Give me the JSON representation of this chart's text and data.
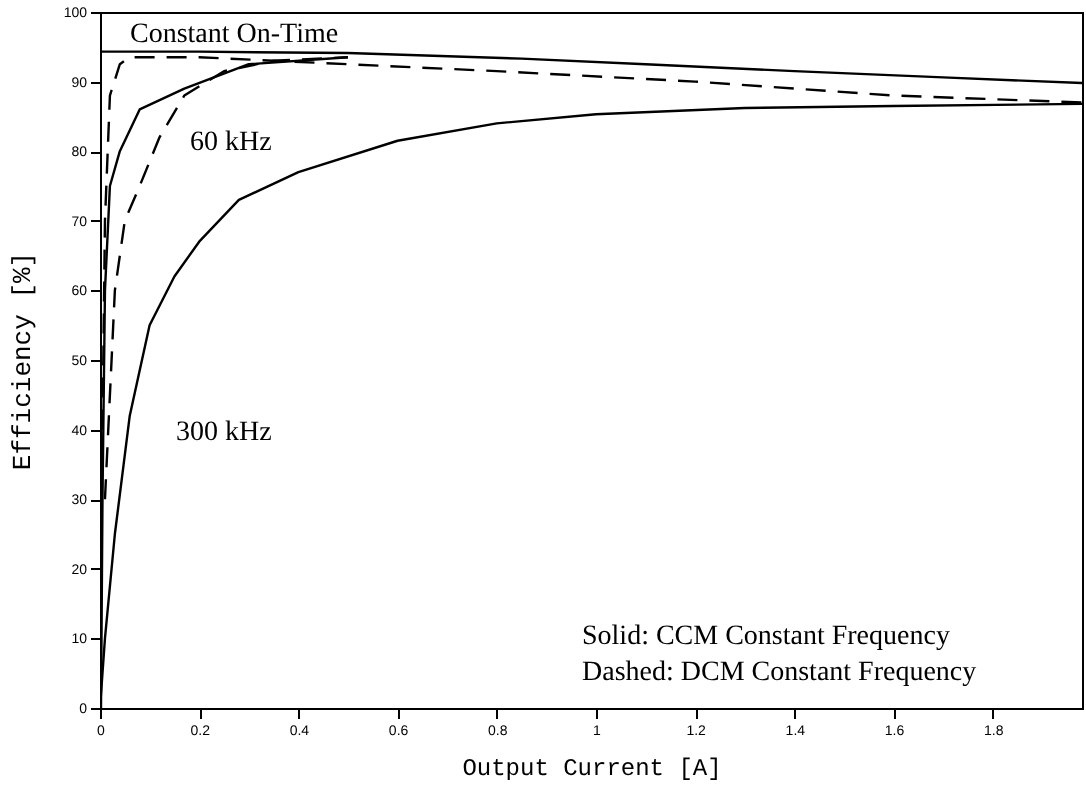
{
  "chart_data": {
    "type": "line",
    "xlabel": "Output Current [A]",
    "ylabel": "Efficiency [%]",
    "xlim": [
      0,
      1.98
    ],
    "ylim": [
      0,
      100
    ],
    "xticks": [
      0,
      0.2,
      0.4,
      0.6,
      0.8,
      1,
      1.2,
      1.4,
      1.6,
      1.8
    ],
    "yticks": [
      0,
      10,
      20,
      30,
      40,
      50,
      60,
      70,
      80,
      90,
      100
    ],
    "grid": false,
    "marker": "none",
    "series": [
      {
        "color": "#000000",
        "line_style": "solid",
        "x": [
          0,
          0.2,
          0.5,
          0.85,
          1.1,
          1.4,
          1.7,
          1.98
        ],
        "values": [
          94.3,
          94.3,
          94.1,
          93.3,
          92.5,
          91.5,
          90.6,
          89.8
        ]
      },
      {
        "color": "#000000",
        "line_style": "dashed",
        "x": [
          0.005,
          0.01,
          0.02,
          0.04,
          0.06,
          0.2,
          0.5,
          0.8,
          1.2,
          1.6,
          1.98
        ],
        "values": [
          40,
          70,
          88,
          92.5,
          93.5,
          93.5,
          92.5,
          91.5,
          90,
          88,
          87
        ]
      },
      {
        "color": "#000000",
        "line_style": "dashed",
        "x": [
          0.01,
          0.03,
          0.05,
          0.08,
          0.12,
          0.17,
          0.25,
          0.35,
          0.5
        ],
        "values": [
          30,
          60,
          70,
          75,
          82,
          88,
          91.5,
          93,
          93.5
        ]
      },
      {
        "color": "#000000",
        "line_style": "solid",
        "x": [
          0.002,
          0.005,
          0.01,
          0.02,
          0.04,
          0.08,
          0.17,
          0.3,
          0.5
        ],
        "values": [
          0,
          30,
          60,
          75,
          80,
          86,
          89,
          92.5,
          93.5
        ]
      },
      {
        "color": "#000000",
        "line_style": "solid",
        "x": [
          0,
          0.01,
          0.03,
          0.06,
          0.1,
          0.15,
          0.2,
          0.28,
          0.4,
          0.6,
          0.8,
          1.0,
          1.3,
          1.6,
          1.98
        ],
        "values": [
          0,
          10,
          25,
          42,
          55,
          62,
          67,
          73,
          77,
          81.5,
          84,
          85.3,
          86.2,
          86.5,
          86.8
        ]
      }
    ],
    "annotations": [
      "Constant On-Time",
      "60 kHz",
      "300 kHz",
      "Solid:    CCM Constant Frequency",
      "Dashed:  DCM Constant Frequency"
    ]
  }
}
